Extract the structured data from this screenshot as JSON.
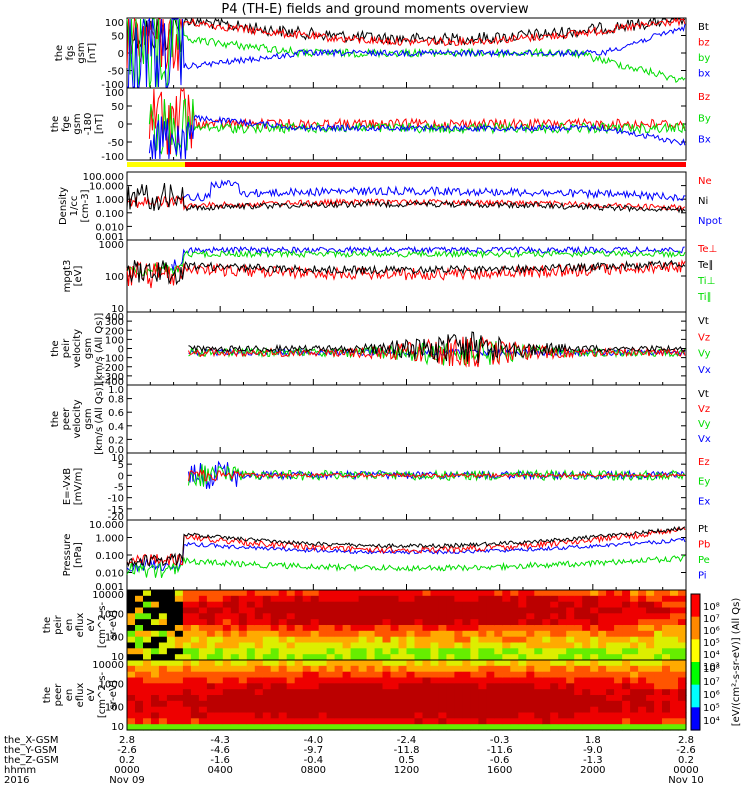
{
  "title": "P4 (TH-E) fields and ground moments overview",
  "colors": {
    "black": "#000000",
    "red": "#ff0000",
    "green": "#00dd00",
    "blue": "#0000ff",
    "yellow": "#ffff00"
  },
  "chart_data": [
    {
      "type": "line",
      "ylabel": [
        "the",
        "fgs",
        "gsm",
        "[nT]"
      ],
      "ylim": [
        -100,
        100
      ],
      "yticks": [
        "100",
        "50",
        "0",
        "-50",
        "-100"
      ],
      "series": [
        {
          "name": "Bt",
          "color": "black"
        },
        {
          "name": "bz",
          "color": "red"
        },
        {
          "name": "by",
          "color": "green"
        },
        {
          "name": "bx",
          "color": "blue"
        }
      ]
    },
    {
      "type": "line",
      "ylabel": [
        "the",
        "fge",
        "gsm",
        "-180",
        "[nT]"
      ],
      "ylim": [
        -100,
        100
      ],
      "yticks": [
        "100",
        "50",
        "0",
        "-50",
        "-100"
      ],
      "series": [
        {
          "name": "Bz",
          "color": "red"
        },
        {
          "name": "By",
          "color": "green"
        },
        {
          "name": "Bx",
          "color": "blue"
        }
      ]
    },
    {
      "type": "line",
      "ylabel": [
        "Density",
        "1/cc",
        "[cm-3]"
      ],
      "yscale": "log",
      "yticks": [
        "100.000",
        "10.000",
        "1.000",
        "0.100",
        "0.010",
        "0.001"
      ],
      "series": [
        {
          "name": "Ne",
          "color": "red"
        },
        {
          "name": "Ni",
          "color": "black"
        },
        {
          "name": "Npot",
          "color": "blue"
        }
      ]
    },
    {
      "type": "line",
      "ylabel": [
        "mpgt3",
        "[eV]"
      ],
      "yscale": "log",
      "yticks": [
        "1000",
        "100",
        "10"
      ],
      "series": [
        {
          "name": "Te⊥",
          "color": "red"
        },
        {
          "name": "Te∥",
          "color": "black"
        },
        {
          "name": "Ti⊥",
          "color": "green"
        },
        {
          "name": "Ti∥",
          "color": "green"
        }
      ]
    },
    {
      "type": "line",
      "ylabel": [
        "the",
        "peir",
        "velocity",
        "gsm",
        "[km/s (All Qs)]"
      ],
      "ylim": [
        -400,
        400
      ],
      "yticks": [
        "400",
        "300",
        "200",
        "100",
        "0",
        "-100",
        "-200",
        "-300",
        "-400"
      ],
      "series": [
        {
          "name": "Vt",
          "color": "black"
        },
        {
          "name": "Vz",
          "color": "red"
        },
        {
          "name": "Vy",
          "color": "green"
        },
        {
          "name": "Vx",
          "color": "blue"
        }
      ]
    },
    {
      "type": "line",
      "ylabel": [
        "the",
        "peer",
        "velocity",
        "gsm",
        "[km/s (All Qs)]"
      ],
      "ylim": [
        0,
        1
      ],
      "yticks": [
        "1.0",
        "0.8",
        "0.6",
        "0.4",
        "0.2",
        "0.0"
      ],
      "series": [
        {
          "name": "Vt",
          "color": "black"
        },
        {
          "name": "Vz",
          "color": "red"
        },
        {
          "name": "Vy",
          "color": "green"
        },
        {
          "name": "Vx",
          "color": "blue"
        }
      ]
    },
    {
      "type": "line",
      "ylabel": [
        "E=-VxB",
        "[mV/m]"
      ],
      "ylim": [
        -20,
        10
      ],
      "yticks": [
        "10",
        "5",
        "0",
        "-5",
        "-10",
        "-15",
        "-20"
      ],
      "series": [
        {
          "name": "Ez",
          "color": "red"
        },
        {
          "name": "Ey",
          "color": "green"
        },
        {
          "name": "Ex",
          "color": "blue"
        }
      ]
    },
    {
      "type": "line",
      "ylabel": [
        "Pressure",
        "[nPa]"
      ],
      "yscale": "log",
      "yticks": [
        "10.000",
        "1.000",
        "0.100",
        "0.010",
        "0.001"
      ],
      "series": [
        {
          "name": "Pt",
          "color": "black"
        },
        {
          "name": "Pb",
          "color": "red"
        },
        {
          "name": "Pe",
          "color": "green"
        },
        {
          "name": "Pi",
          "color": "blue"
        }
      ]
    },
    {
      "type": "heatmap",
      "ylabel": [
        "the",
        "peir",
        "en",
        "eflux",
        "eV",
        "[cm^2-s-",
        "sr-eV]"
      ],
      "yticks": [
        "10000",
        "1000",
        "100",
        "10"
      ]
    },
    {
      "type": "heatmap",
      "ylabel": [
        "the",
        "peer",
        "en",
        "eflux",
        "eV",
        "[cm^2-s-",
        "sr-eV]"
      ],
      "yticks": [
        "10000",
        "1000",
        "100",
        "10"
      ]
    }
  ],
  "colorbar": {
    "label": "[eV/(cm^2-s-sr-eV)] (All Qs)",
    "ticks_top": [
      "10^8",
      "10^7",
      "10^6",
      "10^5",
      "10^4",
      "10^3"
    ],
    "ticks_bottom": [
      "10^8",
      "10^7",
      "10^6",
      "10^5",
      "10^4"
    ]
  },
  "xaxis": {
    "row_labels": [
      "the_X-GSM",
      "the_Y-GSM",
      "the_Z-GSM",
      "hhmm",
      "2016"
    ],
    "columns": [
      {
        "x": "2.8",
        "y": "-2.6",
        "z": "0.2",
        "t": "0000",
        "d": "Nov 09"
      },
      {
        "x": "-4.3",
        "y": "-4.6",
        "z": "-1.6",
        "t": "0400",
        "d": ""
      },
      {
        "x": "-4.0",
        "y": "-9.7",
        "z": "-0.4",
        "t": "0800",
        "d": ""
      },
      {
        "x": "-2.4",
        "y": "-11.8",
        "z": "0.5",
        "t": "1200",
        "d": ""
      },
      {
        "x": "-0.3",
        "y": "-11.6",
        "z": "-0.6",
        "t": "1600",
        "d": ""
      },
      {
        "x": "1.8",
        "y": "-9.0",
        "z": "-1.3",
        "t": "2000",
        "d": ""
      },
      {
        "x": "2.8",
        "y": "-2.6",
        "z": "0.2",
        "t": "0000",
        "d": "Nov 10"
      }
    ]
  }
}
